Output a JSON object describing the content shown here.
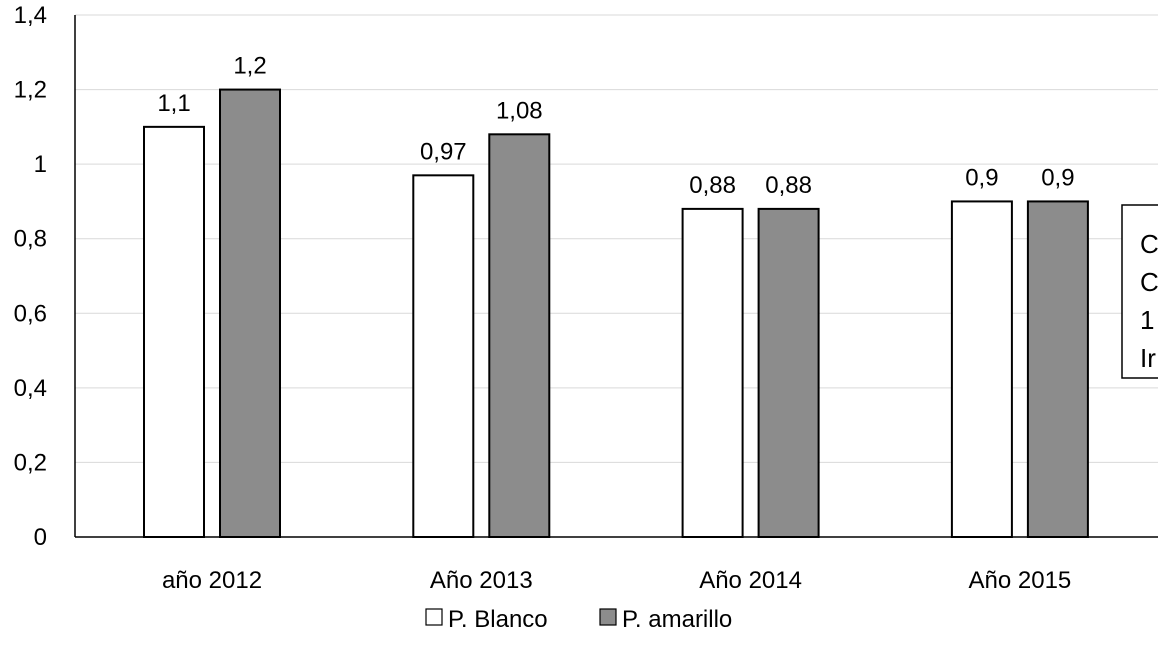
{
  "chart_data": {
    "type": "bar",
    "categories": [
      "año 2012",
      "Año 2013",
      "Año 2014",
      "Año 2015"
    ],
    "series": [
      {
        "name": "P. Blanco",
        "values": [
          1.1,
          0.97,
          0.88,
          0.9
        ],
        "labels": [
          "1,1",
          "0,97",
          "0,88",
          "0,9"
        ],
        "color": "#ffffff"
      },
      {
        "name": "P. amarillo",
        "values": [
          1.2,
          1.08,
          0.88,
          0.9
        ],
        "labels": [
          "1,2",
          "1,08",
          "0,88",
          "0,9"
        ],
        "color": "#8c8c8c"
      }
    ],
    "ylim": [
      0,
      1.4
    ],
    "yticks": [
      0,
      0.2,
      0.4,
      0.6,
      0.8,
      1,
      1.2,
      1.4
    ],
    "ytick_labels": [
      "0",
      "0,2",
      "0,4",
      "0,6",
      "0,8",
      "1",
      "1,2",
      "1,4"
    ],
    "grid": true,
    "legend_position": "bottom",
    "annotation_lines": [
      "C",
      "C",
      "1",
      "Ir"
    ]
  }
}
